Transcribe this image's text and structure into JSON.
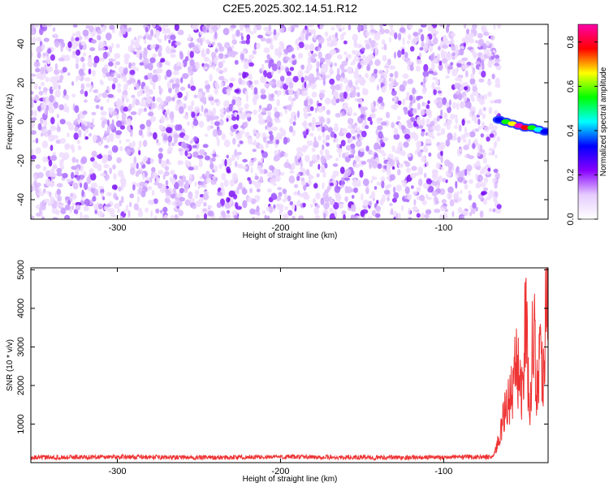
{
  "title": "C2E5.2025.302.14.51.R12",
  "chart_data": [
    {
      "type": "heatmap",
      "xlabel": "Height of straight line (km)",
      "ylabel": "Frequency (Hz)",
      "xlim": [
        -353,
        -36
      ],
      "ylim": [
        -50,
        50
      ],
      "x_ticks": [
        -300,
        -200,
        -100
      ],
      "y_ticks": [
        -40,
        -20,
        0,
        20,
        40
      ],
      "colorbar": {
        "label": "Normalized spectral amplitude",
        "range": [
          0,
          0.88
        ],
        "ticks": [
          0.0,
          0.2,
          0.4,
          0.6,
          0.8
        ],
        "colors": [
          "#ffffff",
          "#e6ccff",
          "#8800ff",
          "#0000ff",
          "#00ffff",
          "#00ff00",
          "#ffff00",
          "#ff0000",
          "#ff00aa"
        ]
      },
      "noise_region": {
        "x_range": [
          -353,
          -66
        ],
        "frequency_range": [
          -50,
          50
        ],
        "typical_amplitude": [
          0.0,
          0.05
        ]
      },
      "signal_track": [
        {
          "x": -66,
          "frequency": 1,
          "amplitude": 0.35
        },
        {
          "x": -62,
          "frequency": 0,
          "amplitude": 0.55
        },
        {
          "x": -58,
          "frequency": -1,
          "amplitude": 0.7
        },
        {
          "x": -54,
          "frequency": -2,
          "amplitude": 0.85
        },
        {
          "x": -50,
          "frequency": -3,
          "amplitude": 0.8
        },
        {
          "x": -46,
          "frequency": -3,
          "amplitude": 0.6
        },
        {
          "x": -42,
          "frequency": -4,
          "amplitude": 0.45
        },
        {
          "x": -38,
          "frequency": -5,
          "amplitude": 0.35
        }
      ],
      "empty_region_x": [
        -66,
        -36
      ]
    },
    {
      "type": "line",
      "xlabel": "Height of straight line (km)",
      "ylabel": "SNR (10 * v/v)",
      "xlim": [
        -353,
        -36
      ],
      "ylim": [
        0,
        5050
      ],
      "x_ticks": [
        -300,
        -200,
        -100
      ],
      "y_ticks": [
        1000,
        2000,
        3000,
        4000,
        5000
      ],
      "color": "#ee3333",
      "series": [
        {
          "x": [
            -353,
            -300,
            -250,
            -200,
            -150,
            -100,
            -70,
            -66,
            -62,
            -58,
            -55,
            -52,
            -50,
            -47,
            -45,
            -43,
            -41,
            -39,
            -37,
            -36
          ],
          "y": [
            130,
            150,
            130,
            150,
            130,
            140,
            150,
            600,
            1400,
            1900,
            2600,
            1800,
            3900,
            1200,
            4050,
            1700,
            3200,
            2100,
            4900,
            5000
          ]
        }
      ]
    }
  ]
}
